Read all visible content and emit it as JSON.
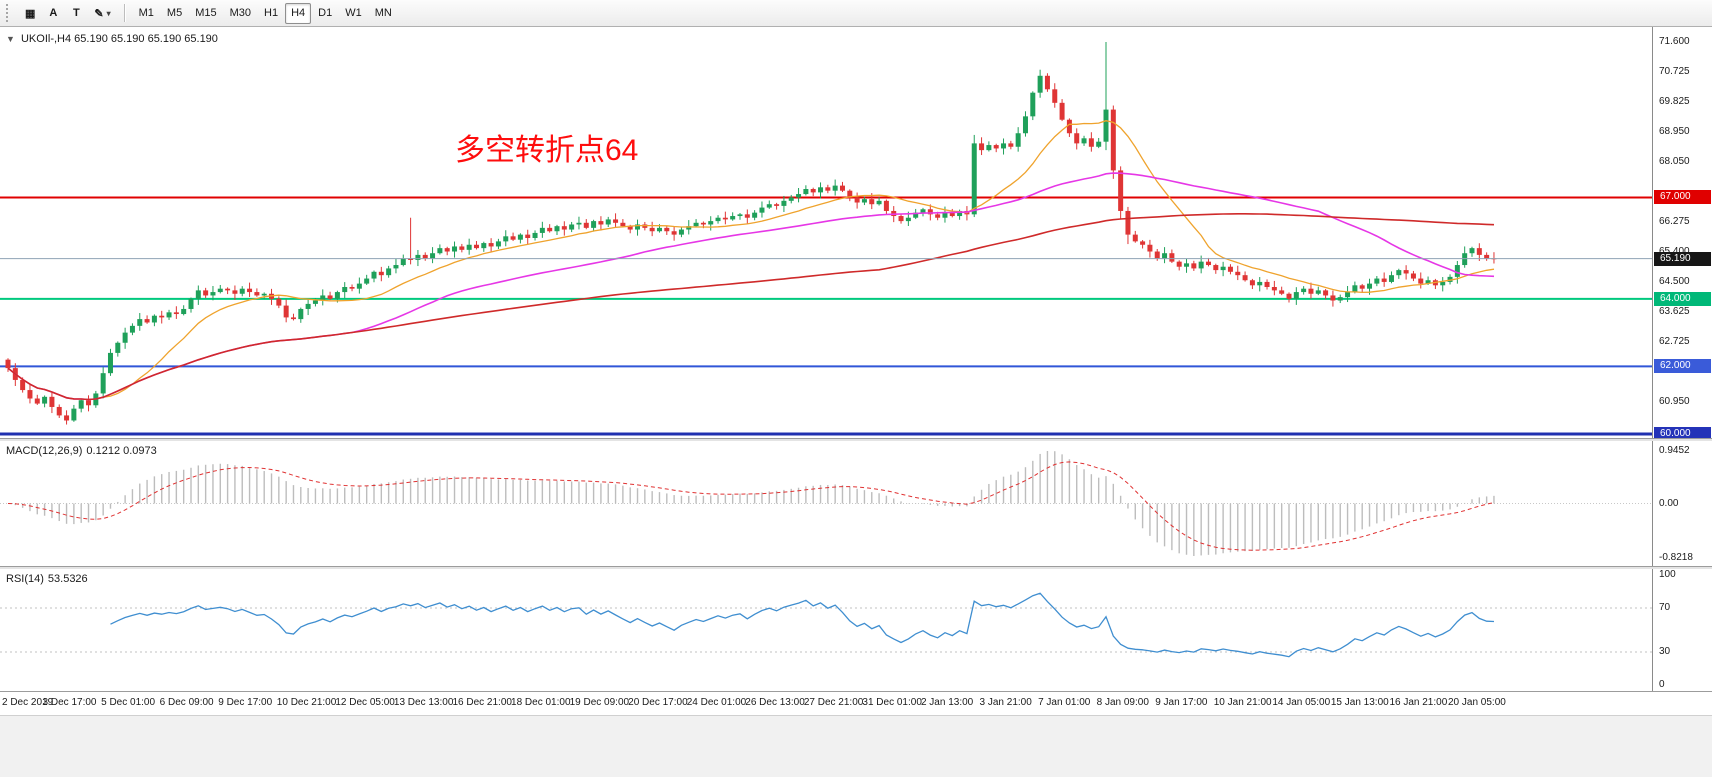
{
  "toolbar": {
    "icons": [
      {
        "name": "grid-icon",
        "glyph": "▦"
      },
      {
        "name": "text-label-icon",
        "glyph": "A"
      },
      {
        "name": "text-tool-icon",
        "glyph": "T"
      },
      {
        "name": "draw-tool-icon",
        "glyph": "✎"
      },
      {
        "name": "dropdown-caret-icon",
        "glyph": "▾"
      }
    ],
    "timeframes": [
      {
        "label": "M1",
        "active": false
      },
      {
        "label": "M5",
        "active": false
      },
      {
        "label": "M15",
        "active": false
      },
      {
        "label": "M30",
        "active": false
      },
      {
        "label": "H1",
        "active": false
      },
      {
        "label": "H4",
        "active": true
      },
      {
        "label": "D1",
        "active": false
      },
      {
        "label": "W1",
        "active": false
      },
      {
        "label": "MN",
        "active": false
      }
    ]
  },
  "chart": {
    "symbol_period": "UKOIl-,H4",
    "ohlc": "65.190 65.190 65.190 65.190",
    "dropdown_glyph": "▼",
    "annotation": {
      "text": "多空转折点64",
      "color": "#fe0d0d"
    },
    "price_ticks": [
      "71.600",
      "70.725",
      "69.825",
      "68.950",
      "68.050",
      "66.275",
      "65.400",
      "64.500",
      "63.625",
      "62.725",
      "60.950"
    ],
    "price_tags": [
      {
        "text": "67.000",
        "bg": "#e00000",
        "fg": "#ffffff"
      },
      {
        "text": "65.190",
        "bg": "#161616",
        "fg": "#ffffff"
      },
      {
        "text": "64.000",
        "bg": "#00b878",
        "fg": "#ffffff"
      },
      {
        "text": "62.000",
        "bg": "#3a5bd9",
        "fg": "#ffffff"
      },
      {
        "text": "60.000",
        "bg": "#2433b8",
        "fg": "#ffffff"
      }
    ]
  },
  "chart_data": {
    "type": "candlestick",
    "symbol": "UKOIl-",
    "timeframe": "H4",
    "current_price": 65.19,
    "price_range": [
      59.9,
      72.05
    ],
    "up_color": "#1fa05a",
    "down_color": "#df3535",
    "first_open": 62.2,
    "closes": [
      61.95,
      61.6,
      61.3,
      61.05,
      60.9,
      61.1,
      60.8,
      60.55,
      60.4,
      60.75,
      61.0,
      60.85,
      61.2,
      61.8,
      62.4,
      62.7,
      63.0,
      63.2,
      63.4,
      63.3,
      63.5,
      63.45,
      63.6,
      63.55,
      63.7,
      64.0,
      64.25,
      64.1,
      64.2,
      64.3,
      64.25,
      64.15,
      64.3,
      64.2,
      64.1,
      64.15,
      64.0,
      63.8,
      63.45,
      63.4,
      63.7,
      63.85,
      63.95,
      64.1,
      64.0,
      64.2,
      64.35,
      64.3,
      64.45,
      64.6,
      64.8,
      64.7,
      64.9,
      65.0,
      65.2,
      65.15,
      65.3,
      65.2,
      65.35,
      65.5,
      65.4,
      65.55,
      65.45,
      65.6,
      65.5,
      65.65,
      65.55,
      65.7,
      65.85,
      65.75,
      65.9,
      65.8,
      65.95,
      66.1,
      66.0,
      66.15,
      66.05,
      66.2,
      66.25,
      66.1,
      66.3,
      66.2,
      66.35,
      66.25,
      66.15,
      66.05,
      66.2,
      66.1,
      66.0,
      66.1,
      66.0,
      65.9,
      66.05,
      66.15,
      66.25,
      66.2,
      66.3,
      66.4,
      66.35,
      66.45,
      66.5,
      66.4,
      66.55,
      66.7,
      66.8,
      66.75,
      66.9,
      67.0,
      67.1,
      67.25,
      67.15,
      67.3,
      67.2,
      67.35,
      67.2,
      67.0,
      66.85,
      66.95,
      66.8,
      66.9,
      66.6,
      66.45,
      66.3,
      66.4,
      66.55,
      66.65,
      66.5,
      66.4,
      66.55,
      66.45,
      66.6,
      66.5,
      68.6,
      68.4,
      68.55,
      68.45,
      68.6,
      68.5,
      68.9,
      69.4,
      70.1,
      70.6,
      70.2,
      69.8,
      69.3,
      68.9,
      68.6,
      68.75,
      68.5,
      68.65,
      69.6,
      67.8,
      66.6,
      65.9,
      65.7,
      65.6,
      65.4,
      65.2,
      65.35,
      65.1,
      64.95,
      65.05,
      64.9,
      65.1,
      65.0,
      64.85,
      64.95,
      64.8,
      64.7,
      64.55,
      64.4,
      64.5,
      64.35,
      64.25,
      64.15,
      64.0,
      64.2,
      64.3,
      64.15,
      64.25,
      64.1,
      63.95,
      64.05,
      64.2,
      64.4,
      64.3,
      64.45,
      64.6,
      64.5,
      64.7,
      64.85,
      64.75,
      64.6,
      64.45,
      64.55,
      64.4,
      64.5,
      64.65,
      65.0,
      65.35,
      65.5,
      65.3,
      65.2,
      65.19
    ],
    "overrides": {
      "8": [
        60.55,
        60.7,
        60.28,
        60.4
      ],
      "14": [
        61.8,
        62.52,
        61.72,
        62.4
      ],
      "55": [
        65.2,
        66.4,
        65.02,
        65.15
      ],
      "132": [
        66.5,
        68.85,
        66.42,
        68.6
      ],
      "139": [
        68.9,
        69.55,
        68.8,
        69.4
      ],
      "141": [
        70.1,
        70.78,
        69.95,
        70.6
      ],
      "150": [
        68.65,
        71.6,
        68.4,
        69.6
      ],
      "151": [
        69.6,
        69.72,
        67.55,
        67.8
      ],
      "152": [
        67.8,
        67.92,
        66.35,
        66.6
      ],
      "153": [
        66.6,
        66.72,
        65.62,
        65.9
      ],
      "198": [
        64.65,
        65.12,
        64.45,
        65.0
      ],
      "199": [
        65.0,
        65.55,
        64.92,
        65.35
      ]
    },
    "moving_averages": [
      {
        "name": "ma-fast-line",
        "period": 14,
        "color": "#efa32d",
        "width": 1.3
      },
      {
        "name": "ma-mid-line",
        "period": 48,
        "color": "#e637e6",
        "width": 1.6
      },
      {
        "name": "ma-slow-line",
        "period": 120,
        "color": "#cf2a2a",
        "width": 1.6
      }
    ],
    "h_lines": [
      {
        "price": 67.0,
        "color": "#e00000",
        "width": 2
      },
      {
        "price": 64.0,
        "color": "#00c97e",
        "width": 2
      },
      {
        "price": 62.0,
        "color": "#3056d8",
        "width": 2
      },
      {
        "price": 60.0,
        "color": "#2030b0",
        "width": 3
      }
    ],
    "indicators": {
      "macd": {
        "fast": 12,
        "slow": 26,
        "signal": 9,
        "value": 0.1212,
        "signal_value": 0.0973,
        "axis_max": 0.9452,
        "axis_min": -0.8218
      },
      "rsi": {
        "period": 14,
        "value": 53.5326,
        "levels": [
          30,
          70
        ],
        "axis_max": 100,
        "axis_min": 0
      }
    }
  },
  "macd_panel": {
    "name": "MACD(12,26,9)",
    "values": "0.1212 0.0973",
    "axis_top": "0.9452",
    "axis_zero": "0.00",
    "axis_bottom": "-0.8218"
  },
  "rsi_panel": {
    "name": "RSI(14)",
    "value": "53.5326",
    "axis": [
      "100",
      "70",
      "30",
      "0"
    ]
  },
  "time_axis": {
    "labels": [
      "2 Dec 2019",
      "3 Dec 17:00",
      "5 Dec 01:00",
      "6 Dec 09:00",
      "9 Dec 17:00",
      "10 Dec 21:00",
      "12 Dec 05:00",
      "13 Dec 13:00",
      "16 Dec 21:00",
      "18 Dec 01:00",
      "19 Dec 09:00",
      "20 Dec 17:00",
      "24 Dec 01:00",
      "26 Dec 13:00",
      "27 Dec 21:00",
      "31 Dec 01:00",
      "2 Jan 13:00",
      "3 Jan 21:00",
      "7 Jan 01:00",
      "8 Jan 09:00",
      "9 Jan 17:00",
      "10 Jan 21:00",
      "14 Jan 05:00",
      "15 Jan 13:00",
      "16 Jan 21:00",
      "20 Jan 05:00"
    ]
  }
}
